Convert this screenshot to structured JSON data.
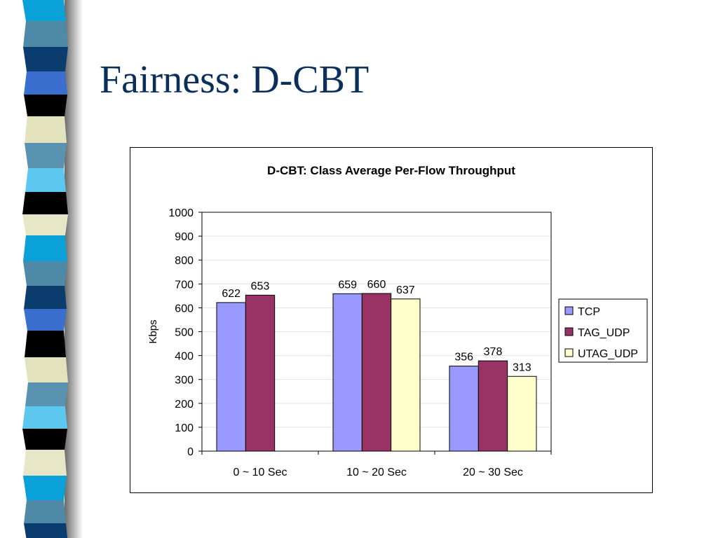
{
  "slide": {
    "title": "Fairness: D-CBT"
  },
  "strip_colors": [
    "#0aa0d8",
    "#4e8aa8",
    "#0a3d6e",
    "#3a6fd0",
    "#000000",
    "#e2e2bd",
    "#5a92b2",
    "#5cc8f0",
    "#000000",
    "#e7e7c7"
  ],
  "chart_data": {
    "type": "bar",
    "title": "D-CBT: Class Average Per-Flow Throughput",
    "xlabel": "",
    "ylabel": "Kbps",
    "ylim": [
      0,
      1000
    ],
    "yticks": [
      0,
      100,
      200,
      300,
      400,
      500,
      600,
      700,
      800,
      900,
      1000
    ],
    "categories": [
      "0 ~ 10 Sec",
      "10 ~ 20 Sec",
      "20 ~ 30 Sec"
    ],
    "grid": true,
    "legend_position": "right",
    "series": [
      {
        "name": "TCP",
        "color": "#9999ff",
        "values": [
          622,
          659,
          356
        ]
      },
      {
        "name": "TAG_UDP",
        "color": "#993366",
        "values": [
          653,
          660,
          378
        ]
      },
      {
        "name": "UTAG_UDP",
        "color": "#ffffcc",
        "values": [
          null,
          637,
          313
        ]
      }
    ]
  }
}
